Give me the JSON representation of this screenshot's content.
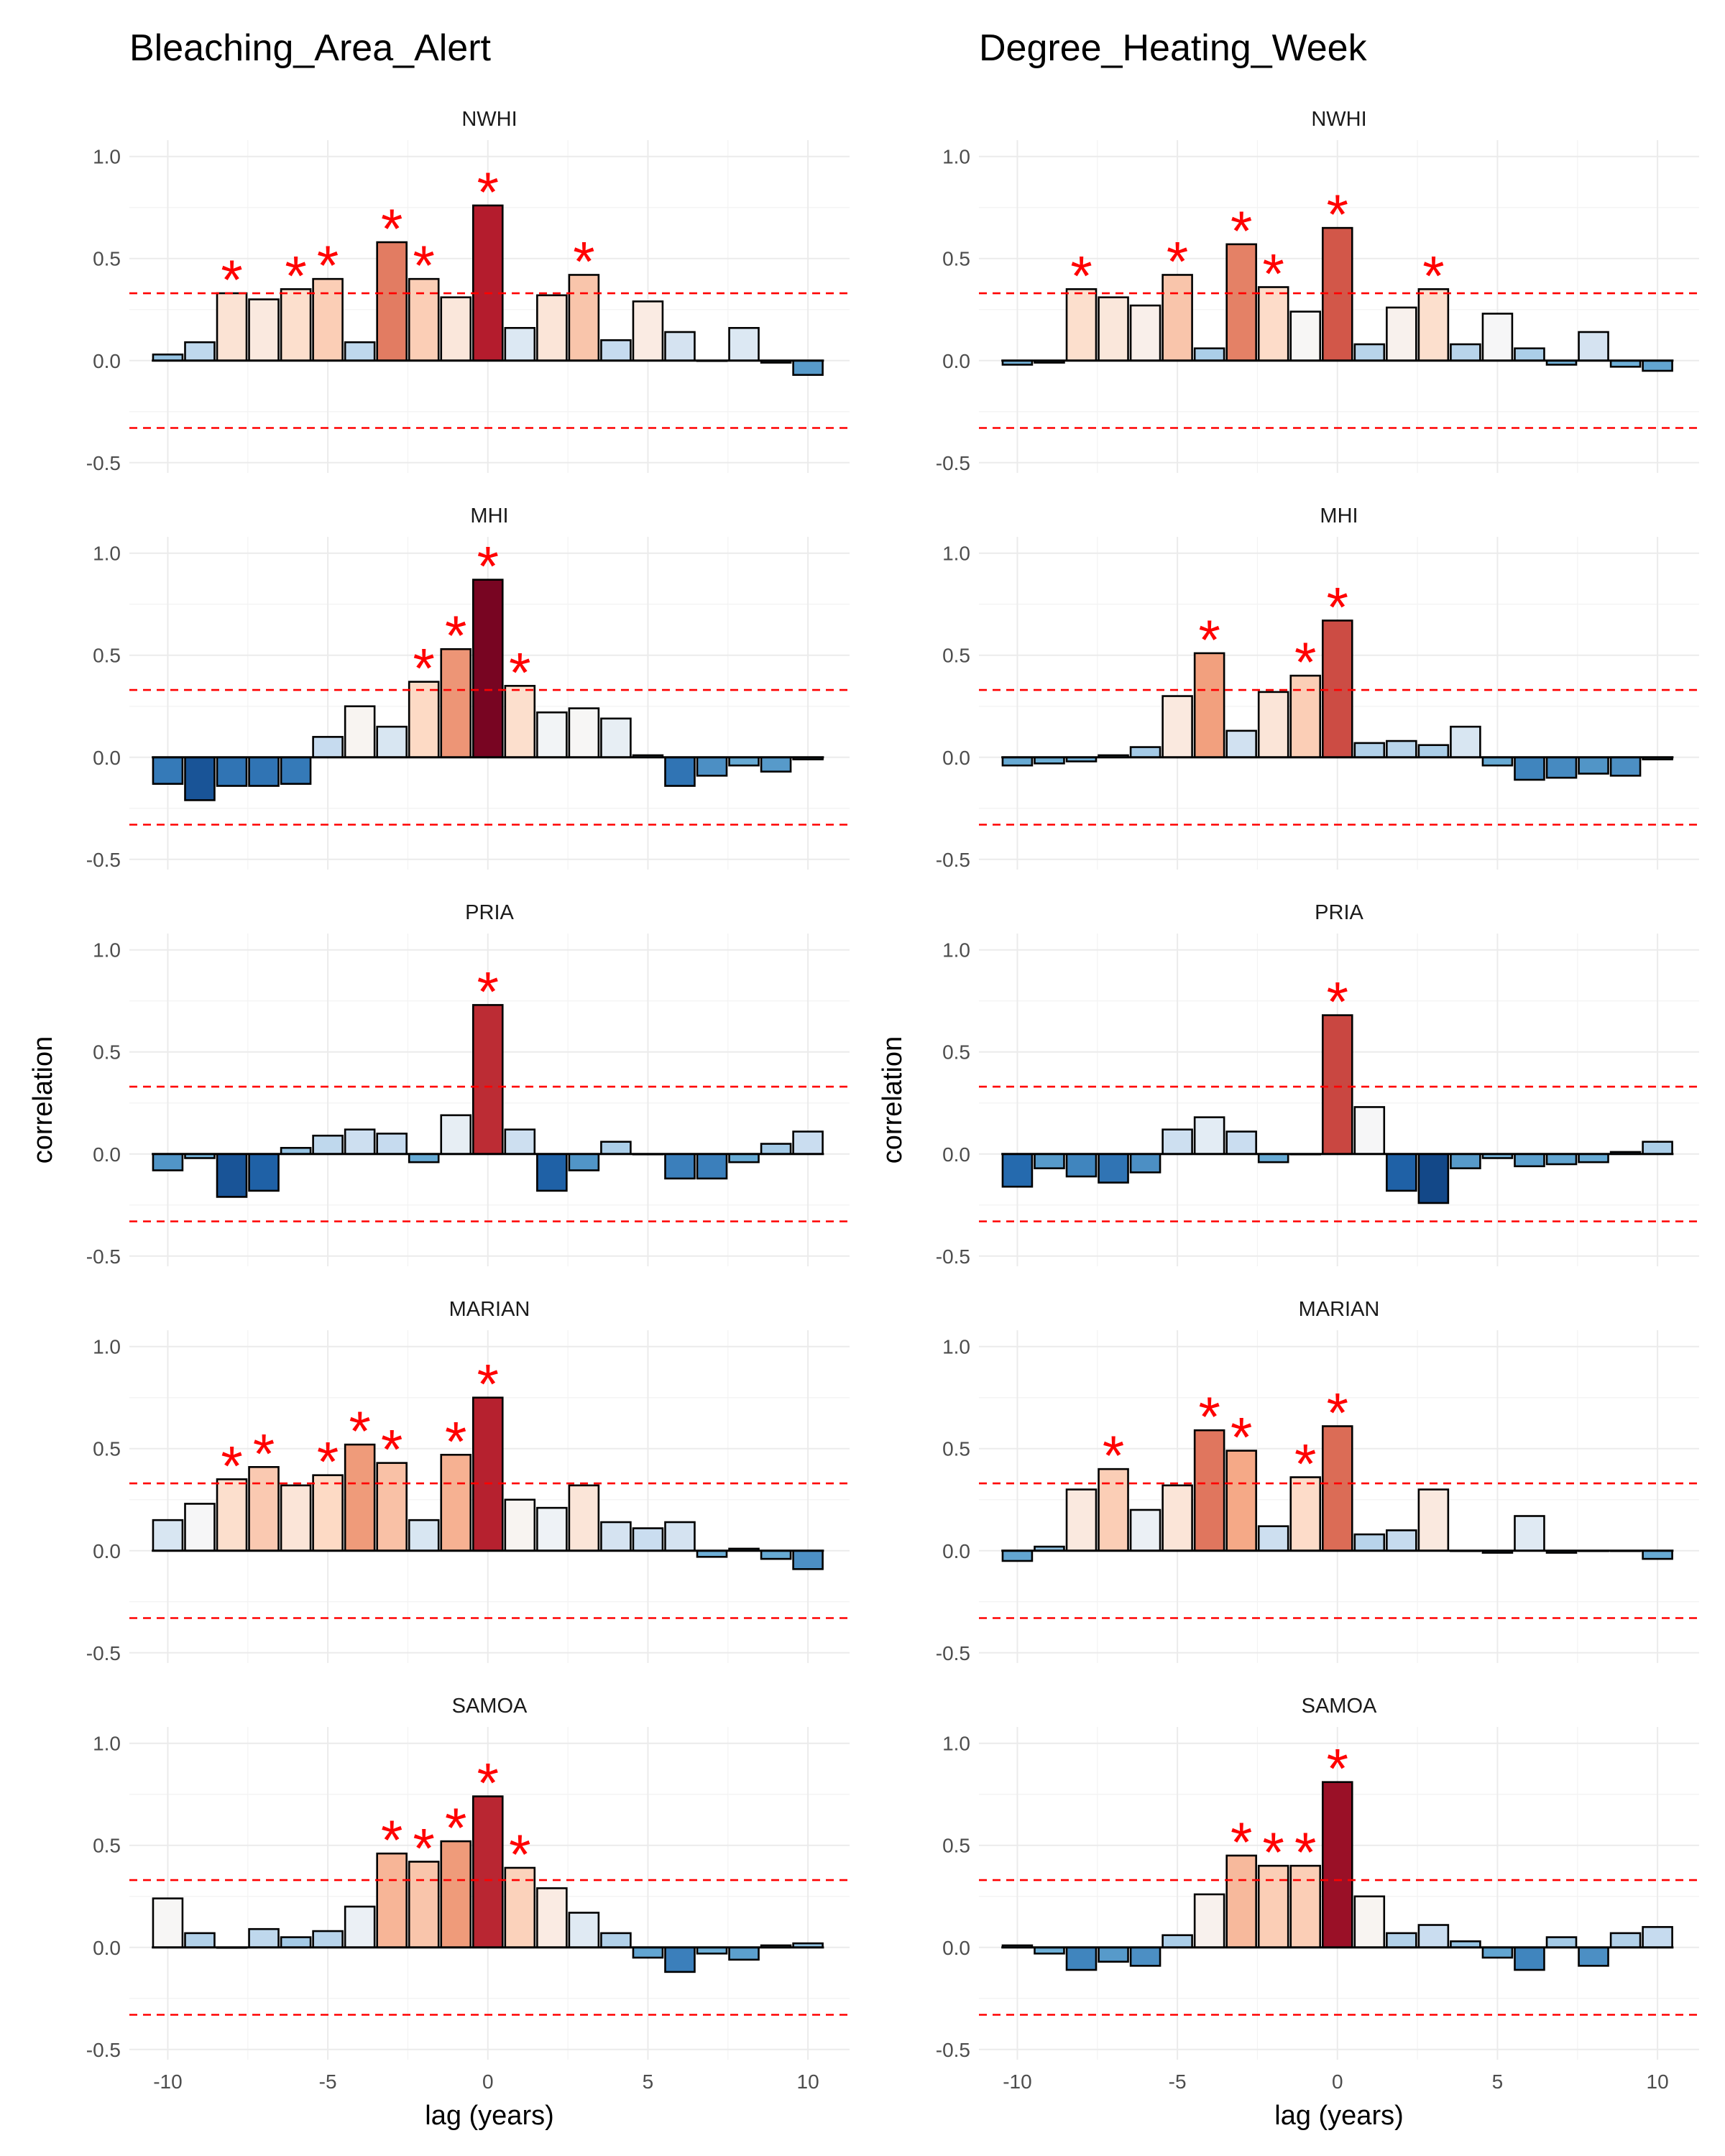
{
  "chart_data": {
    "type": "bar",
    "ylabel": "correlation",
    "xlabel": "lag (years)",
    "ylim": [
      -0.55,
      1.08
    ],
    "xlim": [
      -11.2,
      11.3
    ],
    "yticks": [
      -0.5,
      0.0,
      0.5,
      1.0
    ],
    "ytick_labels": [
      "-0.5",
      "0.0",
      "0.5",
      "1.0"
    ],
    "xticks": [
      -10,
      -5,
      0,
      5,
      10
    ],
    "xtick_labels": [
      "-10",
      "-5",
      "0",
      "5",
      "10"
    ],
    "significance_threshold": 0.33,
    "significance_marker": "*",
    "colors": {
      "threshold_line": "#ff0000",
      "marker": "#ff0000",
      "zero_line": "#000000",
      "diverging_scale": [
        "#08306b",
        "#2166ac",
        "#6baed6",
        "#c6dbef",
        "#f7f7f7",
        "#fddbc7",
        "#f4a582",
        "#d6604d",
        "#b2182b",
        "#67001f"
      ]
    },
    "lags": [
      -10,
      -9,
      -8,
      -7,
      -6,
      -5,
      -4,
      -3,
      -2,
      -1,
      0,
      1,
      2,
      3,
      4,
      5,
      6,
      7,
      8,
      9,
      10
    ],
    "columns": [
      {
        "title": "Bleaching_Area_Alert",
        "panels": [
          {
            "region": "NWHI",
            "values": [
              0.03,
              0.09,
              0.33,
              0.3,
              0.35,
              0.4,
              0.09,
              0.58,
              0.4,
              0.31,
              0.76,
              0.16,
              0.32,
              0.42,
              0.1,
              0.29,
              0.14,
              0.0,
              0.16,
              -0.01,
              -0.07
            ],
            "significant_lags": [
              -8,
              -6,
              -5,
              -3,
              -2,
              0,
              3
            ]
          },
          {
            "region": "MHI",
            "values": [
              -0.13,
              -0.21,
              -0.14,
              -0.14,
              -0.13,
              0.1,
              0.25,
              0.15,
              0.37,
              0.53,
              0.87,
              0.35,
              0.22,
              0.24,
              0.19,
              0.01,
              -0.14,
              -0.09,
              -0.04,
              -0.07,
              -0.01
            ],
            "significant_lags": [
              -2,
              -1,
              0,
              1
            ]
          },
          {
            "region": "PRIA",
            "values": [
              -0.08,
              -0.02,
              -0.21,
              -0.18,
              0.03,
              0.09,
              0.12,
              0.1,
              -0.04,
              0.19,
              0.73,
              0.12,
              -0.18,
              -0.08,
              0.06,
              0.0,
              -0.12,
              -0.12,
              -0.04,
              0.05,
              0.11
            ],
            "significant_lags": [
              0
            ]
          },
          {
            "region": "MARIAN",
            "values": [
              0.15,
              0.23,
              0.35,
              0.41,
              0.32,
              0.37,
              0.52,
              0.43,
              0.15,
              0.47,
              0.75,
              0.25,
              0.21,
              0.32,
              0.14,
              0.11,
              0.14,
              -0.03,
              0.01,
              -0.04,
              -0.09
            ],
            "significant_lags": [
              -8,
              -7,
              -5,
              -4,
              -3,
              -1,
              0
            ]
          },
          {
            "region": "SAMOA",
            "values": [
              0.24,
              0.07,
              0.0,
              0.09,
              0.05,
              0.08,
              0.2,
              0.46,
              0.42,
              0.52,
              0.74,
              0.39,
              0.29,
              0.17,
              0.07,
              -0.05,
              -0.12,
              -0.03,
              -0.06,
              0.01,
              0.02
            ],
            "significant_lags": [
              -3,
              -2,
              -1,
              0,
              1
            ]
          }
        ]
      },
      {
        "title": "Degree_Heating_Week",
        "panels": [
          {
            "region": "NWHI",
            "values": [
              -0.02,
              -0.01,
              0.35,
              0.31,
              0.27,
              0.42,
              0.06,
              0.57,
              0.36,
              0.24,
              0.65,
              0.08,
              0.26,
              0.35,
              0.08,
              0.23,
              0.06,
              -0.02,
              0.14,
              -0.03,
              -0.05
            ],
            "significant_lags": [
              -8,
              -5,
              -3,
              -2,
              0,
              3
            ]
          },
          {
            "region": "MHI",
            "values": [
              -0.04,
              -0.03,
              -0.02,
              0.01,
              0.05,
              0.3,
              0.51,
              0.13,
              0.32,
              0.4,
              0.67,
              0.07,
              0.08,
              0.06,
              0.15,
              -0.04,
              -0.11,
              -0.1,
              -0.08,
              -0.09,
              -0.01
            ],
            "significant_lags": [
              -4,
              -1,
              0
            ]
          },
          {
            "region": "PRIA",
            "values": [
              -0.16,
              -0.07,
              -0.11,
              -0.14,
              -0.09,
              0.12,
              0.18,
              0.11,
              -0.04,
              0.0,
              0.68,
              0.23,
              -0.18,
              -0.24,
              -0.07,
              -0.02,
              -0.06,
              -0.05,
              -0.04,
              0.01,
              0.06
            ],
            "significant_lags": [
              0
            ]
          },
          {
            "region": "MARIAN",
            "values": [
              -0.05,
              0.02,
              0.3,
              0.4,
              0.2,
              0.32,
              0.59,
              0.49,
              0.12,
              0.36,
              0.61,
              0.08,
              0.1,
              0.3,
              0.0,
              -0.01,
              0.17,
              -0.01,
              0.0,
              0.0,
              -0.04
            ],
            "significant_lags": [
              -7,
              -4,
              -3,
              -1,
              0
            ]
          },
          {
            "region": "SAMOA",
            "values": [
              0.01,
              -0.03,
              -0.11,
              -0.07,
              -0.09,
              0.06,
              0.26,
              0.45,
              0.4,
              0.4,
              0.81,
              0.25,
              0.07,
              0.11,
              0.03,
              -0.05,
              -0.11,
              0.05,
              -0.09,
              0.07,
              0.1
            ],
            "significant_lags": [
              -3,
              -2,
              -1,
              0
            ]
          }
        ]
      }
    ]
  }
}
